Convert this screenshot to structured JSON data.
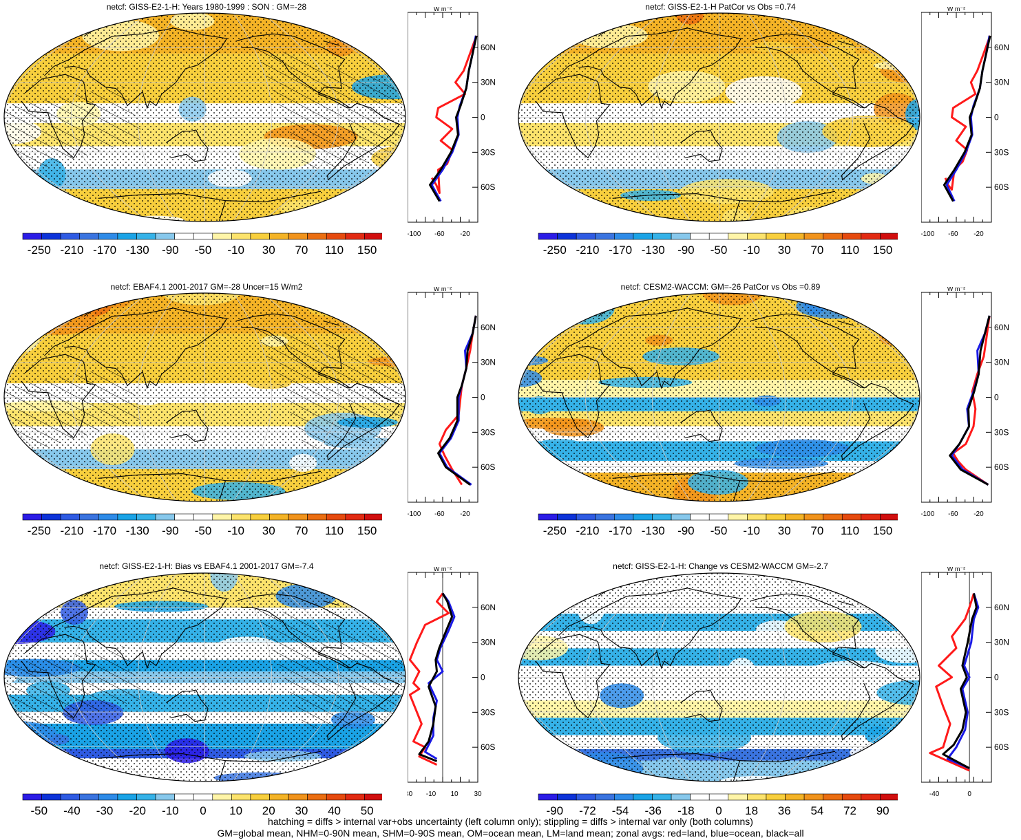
{
  "panels": [
    {
      "title": "netcf: GISS-E2-1-H: Years 1980-1999 : SON : GM=-28",
      "colorbar_labels": [
        "-250",
        "-210",
        "-170",
        "-130",
        "-90",
        "-50",
        "-10",
        "30",
        "70",
        "110",
        "150"
      ],
      "colorbar_range": [
        -270,
        170
      ],
      "profile_xticks": [
        "-100",
        "-60",
        "-20"
      ],
      "profile_range": [
        -110,
        0
      ],
      "profile_zero_line": false,
      "hatching": true,
      "field": "clim",
      "profiles": {
        "land": [
          [
            -72,
            -52
          ],
          [
            -65,
            -58
          ],
          [
            -60,
            -65
          ],
          [
            -62,
            -45
          ],
          [
            -48,
            -40
          ],
          [
            -40,
            -28
          ],
          [
            -58,
            -20
          ],
          [
            -40,
            -10
          ],
          [
            -65,
            0
          ],
          [
            -62,
            8
          ],
          [
            -20,
            20
          ],
          [
            -35,
            30
          ],
          [
            -22,
            40
          ],
          [
            -12,
            55
          ],
          [
            -2,
            70
          ]
        ],
        "ocean": [
          [
            -58,
            -72
          ],
          [
            -72,
            -58
          ],
          [
            -55,
            -45
          ],
          [
            -40,
            -30
          ],
          [
            -30,
            -15
          ],
          [
            -32,
            0
          ],
          [
            -28,
            10
          ],
          [
            -18,
            25
          ],
          [
            -14,
            40
          ],
          [
            -8,
            55
          ],
          [
            -3,
            70
          ]
        ],
        "all": [
          [
            -60,
            -72
          ],
          [
            -75,
            -58
          ],
          [
            -58,
            -45
          ],
          [
            -42,
            -30
          ],
          [
            -31,
            -15
          ],
          [
            -34,
            0
          ],
          [
            -27,
            10
          ],
          [
            -18,
            25
          ],
          [
            -14,
            40
          ],
          [
            -8,
            55
          ],
          [
            -2,
            70
          ]
        ]
      }
    },
    {
      "title": "netcf: GISS-E2-1-H PatCor vs Obs =0.74",
      "colorbar_labels": [
        "-250",
        "-210",
        "-170",
        "-130",
        "-90",
        "-50",
        "-10",
        "30",
        "70",
        "110",
        "150"
      ],
      "colorbar_range": [
        -270,
        170
      ],
      "profile_xticks": [
        "-100",
        "-60",
        "-20"
      ],
      "profile_range": [
        -110,
        0
      ],
      "profile_zero_line": false,
      "hatching": false,
      "field": "clim",
      "profiles": {
        "land": [
          [
            -72,
            -52
          ],
          [
            -68,
            -58
          ],
          [
            -62,
            -62
          ],
          [
            -58,
            -45
          ],
          [
            -45,
            -38
          ],
          [
            -38,
            -28
          ],
          [
            -55,
            -20
          ],
          [
            -40,
            -8
          ],
          [
            -62,
            0
          ],
          [
            -60,
            8
          ],
          [
            -25,
            20
          ],
          [
            -32,
            30
          ],
          [
            -22,
            40
          ],
          [
            -12,
            55
          ],
          [
            -2,
            70
          ]
        ],
        "ocean": [
          [
            -58,
            -72
          ],
          [
            -70,
            -58
          ],
          [
            -55,
            -45
          ],
          [
            -40,
            -30
          ],
          [
            -30,
            -15
          ],
          [
            -32,
            0
          ],
          [
            -28,
            10
          ],
          [
            -18,
            25
          ],
          [
            -14,
            40
          ],
          [
            -8,
            55
          ],
          [
            -3,
            70
          ]
        ],
        "all": [
          [
            -60,
            -72
          ],
          [
            -74,
            -58
          ],
          [
            -58,
            -45
          ],
          [
            -42,
            -30
          ],
          [
            -31,
            -15
          ],
          [
            -34,
            0
          ],
          [
            -27,
            10
          ],
          [
            -18,
            25
          ],
          [
            -14,
            40
          ],
          [
            -8,
            55
          ],
          [
            -2,
            70
          ]
        ]
      }
    },
    {
      "title": "netcf: EBAF4.1 2001-2017 GM=-28 Uncer=15 W/m2",
      "colorbar_labels": [
        "-250",
        "-210",
        "-170",
        "-130",
        "-90",
        "-50",
        "-10",
        "30",
        "70",
        "110",
        "150"
      ],
      "colorbar_range": [
        -270,
        170
      ],
      "profile_xticks": [
        "-100",
        "-60",
        "-20"
      ],
      "profile_range": [
        -110,
        0
      ],
      "profile_zero_line": false,
      "hatching": true,
      "field": "clim",
      "profiles": {
        "land": [
          [
            -25,
            -75
          ],
          [
            -40,
            -62
          ],
          [
            -52,
            -50
          ],
          [
            -60,
            -40
          ],
          [
            -50,
            -28
          ],
          [
            -30,
            -15
          ],
          [
            -28,
            -5
          ],
          [
            -25,
            10
          ],
          [
            -18,
            25
          ],
          [
            -12,
            40
          ],
          [
            -8,
            55
          ],
          [
            -3,
            70
          ]
        ],
        "ocean": [
          [
            -10,
            -75
          ],
          [
            -48,
            -60
          ],
          [
            -60,
            -48
          ],
          [
            -42,
            -35
          ],
          [
            -30,
            -20
          ],
          [
            -30,
            0
          ],
          [
            -25,
            10
          ],
          [
            -18,
            25
          ],
          [
            -20,
            40
          ],
          [
            -8,
            55
          ],
          [
            -3,
            70
          ]
        ],
        "all": [
          [
            -12,
            -75
          ],
          [
            -50,
            -60
          ],
          [
            -62,
            -48
          ],
          [
            -44,
            -35
          ],
          [
            -32,
            -20
          ],
          [
            -32,
            0
          ],
          [
            -25,
            10
          ],
          [
            -18,
            25
          ],
          [
            -16,
            40
          ],
          [
            -8,
            55
          ],
          [
            -3,
            70
          ]
        ]
      }
    },
    {
      "title": "netcf: CESM2-WACCM: GM=-26 PatCor vs Obs =0.89",
      "colorbar_labels": [
        "-250",
        "-210",
        "-170",
        "-130",
        "-90",
        "-50",
        "-10",
        "30",
        "70",
        "110",
        "150"
      ],
      "colorbar_range": [
        -270,
        170
      ],
      "profile_xticks": [
        "-100",
        "-60",
        "-20"
      ],
      "profile_range": [
        -110,
        0
      ],
      "profile_zero_line": false,
      "hatching": false,
      "field": "cesm",
      "profiles": {
        "land": [
          [
            -5,
            -75
          ],
          [
            -40,
            -62
          ],
          [
            -52,
            -55
          ],
          [
            -60,
            -48
          ],
          [
            -40,
            -40
          ],
          [
            -28,
            -25
          ],
          [
            -25,
            -10
          ],
          [
            -30,
            5
          ],
          [
            -22,
            20
          ],
          [
            -12,
            35
          ],
          [
            -8,
            50
          ],
          [
            -3,
            70
          ]
        ],
        "ocean": [
          [
            -5,
            -75
          ],
          [
            -45,
            -62
          ],
          [
            -62,
            -50
          ],
          [
            -50,
            -40
          ],
          [
            -35,
            -25
          ],
          [
            -38,
            -10
          ],
          [
            -28,
            5
          ],
          [
            -20,
            20
          ],
          [
            -22,
            40
          ],
          [
            -10,
            55
          ],
          [
            -3,
            70
          ]
        ],
        "all": [
          [
            -5,
            -75
          ],
          [
            -48,
            -62
          ],
          [
            -65,
            -50
          ],
          [
            -50,
            -40
          ],
          [
            -35,
            -25
          ],
          [
            -36,
            -10
          ],
          [
            -27,
            5
          ],
          [
            -20,
            20
          ],
          [
            -17,
            40
          ],
          [
            -10,
            55
          ],
          [
            -3,
            70
          ]
        ]
      }
    },
    {
      "title": "netcf: GISS-E2-1-H: Bias vs EBAF4.1 2001-2017  GM=-7.4",
      "colorbar_labels": [
        "-50",
        "-40",
        "-30",
        "-20",
        "-10",
        "0",
        "10",
        "20",
        "30",
        "40",
        "50"
      ],
      "colorbar_range": [
        -55,
        55
      ],
      "profile_xticks": [
        "-30",
        "-10",
        "10",
        "30"
      ],
      "profile_range": [
        -30,
        30
      ],
      "profile_zero_line": true,
      "hatching": true,
      "field": "bias",
      "profiles": {
        "land": [
          [
            -5,
            -75
          ],
          [
            -20,
            -68
          ],
          [
            -15,
            -60
          ],
          [
            -25,
            -55
          ],
          [
            -18,
            -40
          ],
          [
            -22,
            -30
          ],
          [
            -28,
            -15
          ],
          [
            -20,
            -10
          ],
          [
            -25,
            -5
          ],
          [
            -20,
            5
          ],
          [
            -28,
            15
          ],
          [
            -22,
            30
          ],
          [
            -15,
            45
          ],
          [
            5,
            55
          ],
          [
            -5,
            65
          ],
          [
            0,
            72
          ]
        ],
        "ocean": [
          [
            -5,
            -70
          ],
          [
            -15,
            -64
          ],
          [
            -8,
            -50
          ],
          [
            -8,
            -35
          ],
          [
            -5,
            -20
          ],
          [
            -12,
            -5
          ],
          [
            0,
            5
          ],
          [
            -5,
            15
          ],
          [
            -2,
            25
          ],
          [
            5,
            40
          ],
          [
            10,
            52
          ],
          [
            5,
            65
          ],
          [
            0,
            72
          ]
        ],
        "all": [
          [
            -5,
            -72
          ],
          [
            -20,
            -66
          ],
          [
            -12,
            -55
          ],
          [
            -8,
            -40
          ],
          [
            -6,
            -25
          ],
          [
            -12,
            -8
          ],
          [
            -5,
            5
          ],
          [
            -6,
            15
          ],
          [
            -3,
            25
          ],
          [
            3,
            40
          ],
          [
            8,
            52
          ],
          [
            4,
            65
          ],
          [
            0,
            72
          ]
        ]
      }
    },
    {
      "title": "netcf: GISS-E2-1-H: Change vs CESM2-WACCM GM=-2.7",
      "colorbar_labels": [
        "-90",
        "-72",
        "-54",
        "-36",
        "-18",
        "0",
        "18",
        "36",
        "54",
        "72",
        "90"
      ],
      "colorbar_range": [
        -99,
        99
      ],
      "profile_xticks": [
        "-40",
        "0"
      ],
      "profile_range": [
        -55,
        25
      ],
      "profile_zero_line": true,
      "hatching": false,
      "field": "change",
      "profiles": {
        "land": [
          [
            0,
            -80
          ],
          [
            -45,
            -65
          ],
          [
            -30,
            -60
          ],
          [
            -22,
            -40
          ],
          [
            -30,
            -25
          ],
          [
            -38,
            -8
          ],
          [
            -20,
            0
          ],
          [
            -35,
            10
          ],
          [
            -15,
            25
          ],
          [
            -20,
            35
          ],
          [
            -5,
            50
          ],
          [
            0,
            60
          ],
          [
            5,
            72
          ]
        ],
        "ocean": [
          [
            0,
            -78
          ],
          [
            -25,
            -70
          ],
          [
            -15,
            -60
          ],
          [
            -5,
            -45
          ],
          [
            -2,
            -30
          ],
          [
            -8,
            -10
          ],
          [
            0,
            0
          ],
          [
            -6,
            10
          ],
          [
            2,
            30
          ],
          [
            5,
            50
          ],
          [
            10,
            60
          ],
          [
            5,
            72
          ]
        ],
        "all": [
          [
            0,
            -78
          ],
          [
            -30,
            -66
          ],
          [
            -18,
            -58
          ],
          [
            -8,
            -45
          ],
          [
            -4,
            -30
          ],
          [
            -10,
            -10
          ],
          [
            -3,
            0
          ],
          [
            -8,
            10
          ],
          [
            -2,
            30
          ],
          [
            3,
            50
          ],
          [
            8,
            60
          ],
          [
            5,
            72
          ]
        ]
      }
    }
  ],
  "lat_labels": [
    "60N",
    "30N",
    "0",
    "30S",
    "60S"
  ],
  "profile_unit": "W m⁻²",
  "footer": {
    "line1": "hatching = diffs > internal var+obs uncertainty (left column only); stippling = diffs > internal var only (both columns)",
    "line2": "GM=global mean, NHM=0-90N mean, SHM=0-90S mean, OM=ocean mean, LM=land mean; zonal avgs: red=land, blue=ocean, black=all"
  },
  "colors": {
    "colorbar": [
      "#2B1CE6",
      "#0D33D9",
      "#2F5BE3",
      "#3A74E0",
      "#2E8BE8",
      "#1AA3E6",
      "#35B2E8",
      "#87C8EC",
      "#FFFFFF",
      "#FFFFFF",
      "#FFF5A8",
      "#FCE36C",
      "#F8CF3D",
      "#F4B326",
      "#F1931B",
      "#EB6E11",
      "#E64A0E",
      "#E22A12",
      "#D10E0E"
    ],
    "land_line": "#ff1a1a",
    "ocean_line": "#1a1ae6",
    "all_line": "#000000"
  }
}
